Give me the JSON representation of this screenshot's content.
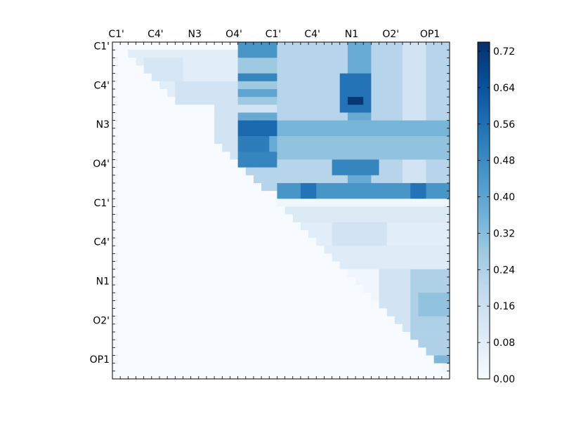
{
  "chart_data": {
    "type": "heatmap",
    "title": "",
    "xlabel": "",
    "ylabel": "",
    "n": 43,
    "x_tick_labels": [
      "C1'",
      "C4'",
      "N3",
      "O4'",
      "C1'",
      "C4'",
      "N1",
      "O2'",
      "OP1"
    ],
    "y_tick_labels": [
      "C1'",
      "C4'",
      "N3",
      "O4'",
      "C1'",
      "C4'",
      "N1",
      "O2'",
      "OP1"
    ],
    "label_every": 5,
    "colormap": {
      "name": "Blues",
      "stops": [
        "#f7fbff",
        "#deebf7",
        "#c6dbef",
        "#9ecae1",
        "#6baed6",
        "#4292c6",
        "#2171b5",
        "#08519c",
        "#08306b"
      ]
    },
    "colorbar": {
      "vmin": 0.0,
      "vmax": 0.74,
      "ticks": [
        "0.00",
        "0.08",
        "0.16",
        "0.24",
        "0.32",
        "0.40",
        "0.48",
        "0.56",
        "0.64",
        "0.72"
      ]
    },
    "blocks": [
      {
        "rows": [
          1,
          6
        ],
        "cols": [
          2,
          15
        ],
        "value": 0.08
      },
      {
        "rows": [
          2,
          4
        ],
        "cols": [
          4,
          8
        ],
        "value": 0.12
      },
      {
        "rows": [
          5,
          7
        ],
        "cols": [
          8,
          15
        ],
        "value": 0.14
      },
      {
        "rows": [
          0,
          7
        ],
        "cols": [
          16,
          21
        ],
        "value": 0.28
      },
      {
        "rows": [
          0,
          1
        ],
        "cols": [
          16,
          20
        ],
        "value": 0.45
      },
      {
        "rows": [
          4,
          4
        ],
        "cols": [
          16,
          20
        ],
        "value": 0.5
      },
      {
        "rows": [
          6,
          6
        ],
        "cols": [
          16,
          20
        ],
        "value": 0.4
      },
      {
        "rows": [
          8,
          14
        ],
        "cols": [
          13,
          21
        ],
        "value": 0.14
      },
      {
        "rows": [
          9,
          13
        ],
        "cols": [
          16,
          20
        ],
        "value": 0.38
      },
      {
        "rows": [
          10,
          11
        ],
        "cols": [
          16,
          20
        ],
        "value": 0.58
      },
      {
        "rows": [
          12,
          13
        ],
        "cols": [
          16,
          19
        ],
        "value": 0.52
      },
      {
        "rows": [
          14,
          14
        ],
        "cols": [
          16,
          20
        ],
        "value": 0.5
      },
      {
        "rows": [
          15,
          18
        ],
        "cols": [
          16,
          20
        ],
        "value": 0.22
      },
      {
        "rows": [
          15,
          15
        ],
        "cols": [
          16,
          20
        ],
        "value": 0.5
      },
      {
        "rows": [
          0,
          17
        ],
        "cols": [
          21,
          42
        ],
        "value": 0.22
      },
      {
        "rows": [
          0,
          17
        ],
        "cols": [
          30,
          32
        ],
        "value": 0.38
      },
      {
        "rows": [
          0,
          17
        ],
        "cols": [
          37,
          39
        ],
        "value": 0.14
      },
      {
        "rows": [
          4,
          8
        ],
        "cols": [
          29,
          32
        ],
        "value": 0.55
      },
      {
        "rows": [
          7,
          7
        ],
        "cols": [
          30,
          31
        ],
        "value": 0.72
      },
      {
        "rows": [
          10,
          11
        ],
        "cols": [
          21,
          42
        ],
        "value": 0.35
      },
      {
        "rows": [
          12,
          14
        ],
        "cols": [
          21,
          42
        ],
        "value": 0.3
      },
      {
        "rows": [
          15,
          16
        ],
        "cols": [
          28,
          33
        ],
        "value": 0.5
      },
      {
        "rows": [
          18,
          19
        ],
        "cols": [
          21,
          42
        ],
        "value": 0.45
      },
      {
        "rows": [
          18,
          19
        ],
        "cols": [
          24,
          25
        ],
        "value": 0.55
      },
      {
        "rows": [
          18,
          19
        ],
        "cols": [
          38,
          39
        ],
        "value": 0.55
      },
      {
        "rows": [
          20,
          42
        ],
        "cols": [
          20,
          42
        ],
        "value": 0.03
      },
      {
        "rows": [
          21,
          22
        ],
        "cols": [
          22,
          42
        ],
        "value": 0.1
      },
      {
        "rows": [
          23,
          26
        ],
        "cols": [
          24,
          42
        ],
        "value": 0.08
      },
      {
        "rows": [
          23,
          25
        ],
        "cols": [
          28,
          34
        ],
        "value": 0.14
      },
      {
        "rows": [
          26,
          28
        ],
        "cols": [
          27,
          42
        ],
        "value": 0.09
      },
      {
        "rows": [
          29,
          40
        ],
        "cols": [
          34,
          42
        ],
        "value": 0.14
      },
      {
        "rows": [
          29,
          40
        ],
        "cols": [
          38,
          42
        ],
        "value": 0.24
      },
      {
        "rows": [
          32,
          34
        ],
        "cols": [
          39,
          42
        ],
        "value": 0.3
      },
      {
        "rows": [
          40,
          40
        ],
        "cols": [
          39,
          42
        ],
        "value": 0.34
      },
      {
        "rows": [
          39,
          39
        ],
        "cols": [
          38,
          38
        ],
        "value": 0.28
      }
    ]
  }
}
